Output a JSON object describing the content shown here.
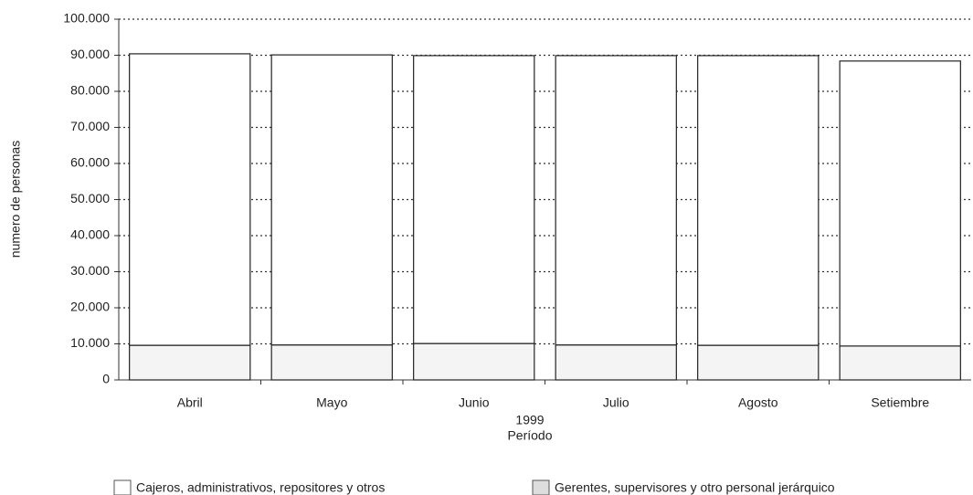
{
  "chart_data": {
    "type": "stacked_bar",
    "y_label": "numero de personas",
    "x_label": "Período",
    "x_sublabel": "1999",
    "categories": [
      "Abril",
      "Mayo",
      "Junio",
      "Julio",
      "Agosto",
      "Setiembre"
    ],
    "series": [
      {
        "name": "Gerentes, supervisores y otro personal jerárquico",
        "color": "#f4f4f4",
        "values": [
          9600,
          9700,
          10100,
          9700,
          9600,
          9400
        ]
      },
      {
        "name": "Cajeros, administrativos, repositores y otros",
        "color": "#ffffff",
        "values": [
          80800,
          80400,
          79800,
          80200,
          80300,
          79000
        ]
      }
    ],
    "legend_order": [
      1,
      0
    ],
    "ylim": [
      0,
      100000
    ],
    "yticks": [
      0,
      {
        "value": 10000,
        "label": "10.000"
      },
      {
        "value": 20000,
        "label": "20.000"
      },
      {
        "value": 30000,
        "label": "30.000"
      },
      {
        "value": 40000,
        "label": "40.000"
      },
      {
        "value": 50000,
        "label": "50.000"
      },
      {
        "value": 60000,
        "label": "60.000"
      },
      {
        "value": 70000,
        "label": "70.000"
      },
      {
        "value": 80000,
        "label": "80.000"
      },
      {
        "value": 90000,
        "label": "90.000"
      },
      {
        "value": 100000,
        "label": "100.000"
      }
    ],
    "grid": true
  }
}
